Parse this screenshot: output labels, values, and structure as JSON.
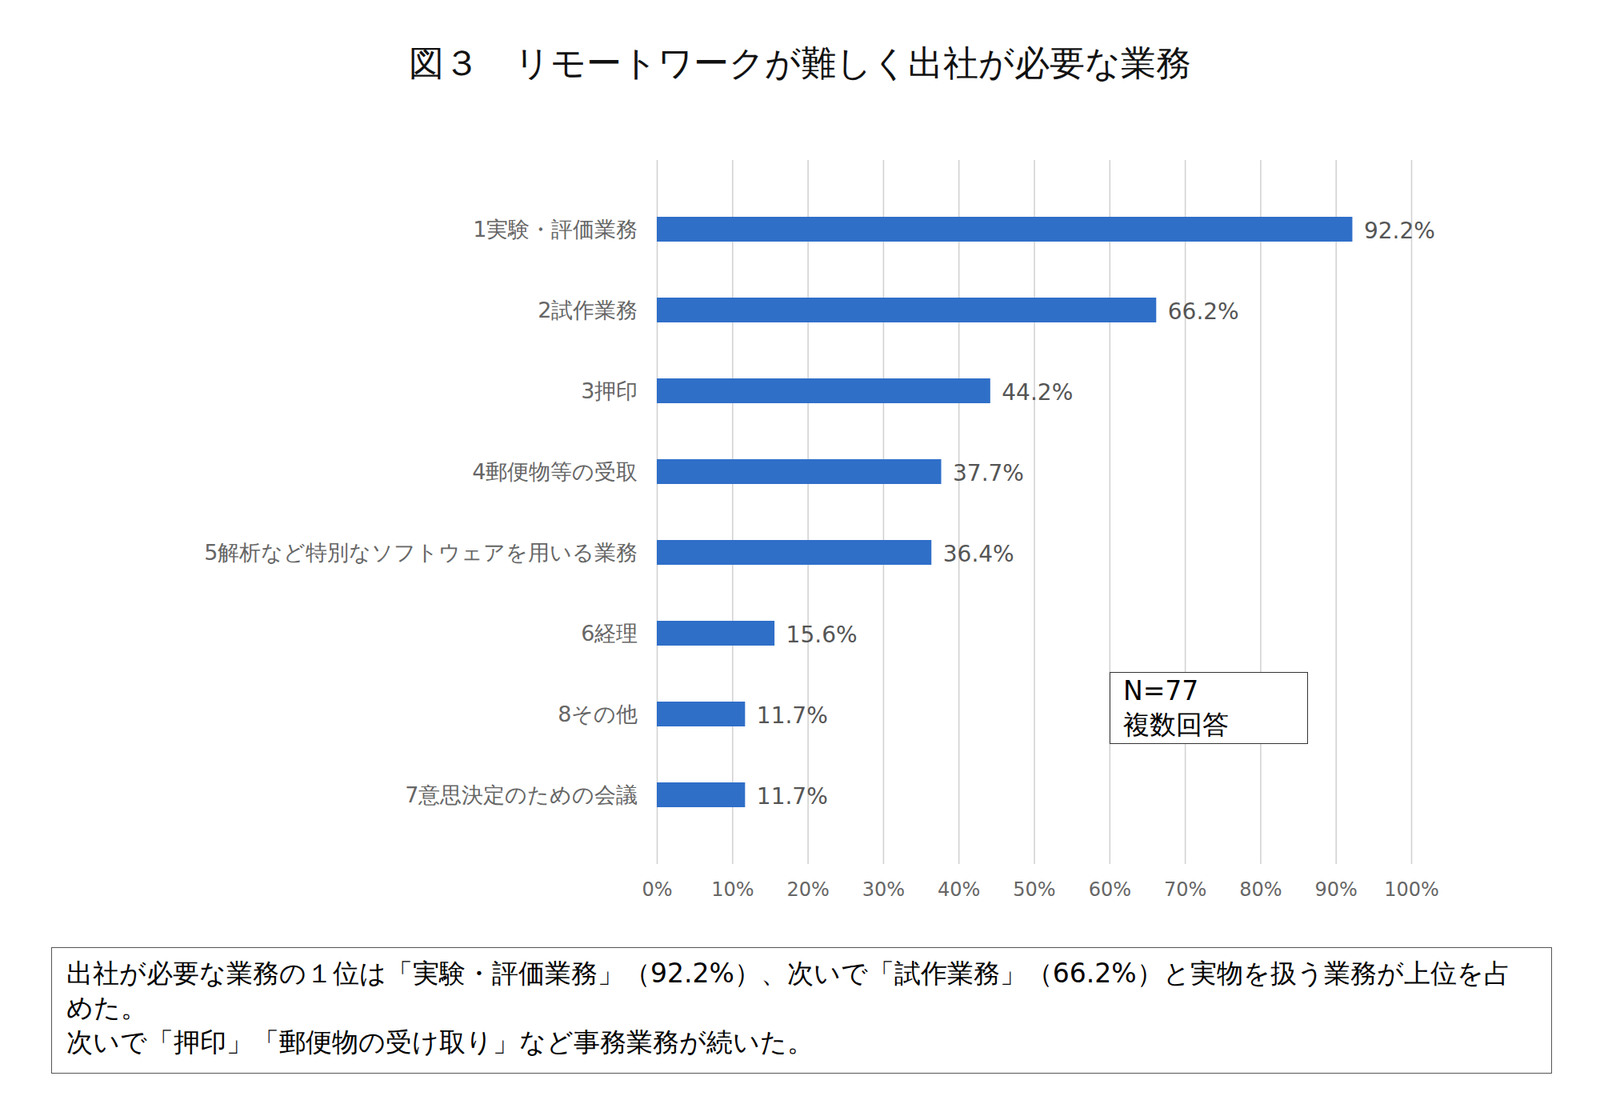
{
  "chart_data": {
    "type": "bar",
    "orientation": "horizontal",
    "title": "図３　リモートワークが難しく出社が必要な業務",
    "categories": [
      "1実験・評価業務",
      "2試作業務",
      "3押印",
      "4郵便物等の受取",
      "5解析など特別なソフトウェアを用いる業務",
      "6経理",
      "8その他",
      "7意思決定のための会議"
    ],
    "values": [
      92.2,
      66.2,
      44.2,
      37.7,
      36.4,
      15.6,
      11.7,
      11.7
    ],
    "value_labels": [
      "92.2%",
      "66.2%",
      "44.2%",
      "37.7%",
      "36.4%",
      "15.6%",
      "11.7%",
      "11.7%"
    ],
    "color": "#2f6fc8",
    "xlim": [
      0,
      100
    ],
    "xticks": [
      {
        "value": 0,
        "label": "0%"
      },
      {
        "value": 10,
        "label": "10%"
      },
      {
        "value": 20,
        "label": "20%"
      },
      {
        "value": 30,
        "label": "30%"
      },
      {
        "value": 40,
        "label": "40%"
      },
      {
        "value": 50,
        "label": "50%"
      },
      {
        "value": 60,
        "label": "60%"
      },
      {
        "value": 70,
        "label": "70%"
      },
      {
        "value": 80,
        "label": "80%"
      },
      {
        "value": 90,
        "label": "90%"
      },
      {
        "value": 100,
        "label": "100%"
      }
    ],
    "grid": true,
    "data_labels": true,
    "annotations": [
      "N=77",
      "複数回答"
    ],
    "caption": [
      "出社が必要な業務の１位は「実験・評価業務」（92.2%）、次いで「試作業務」（66.2%）と実物を扱う業務が上位を占めた。",
      "次いで「押印」「郵便物の受け取り」など事務業務が続いた。"
    ]
  }
}
